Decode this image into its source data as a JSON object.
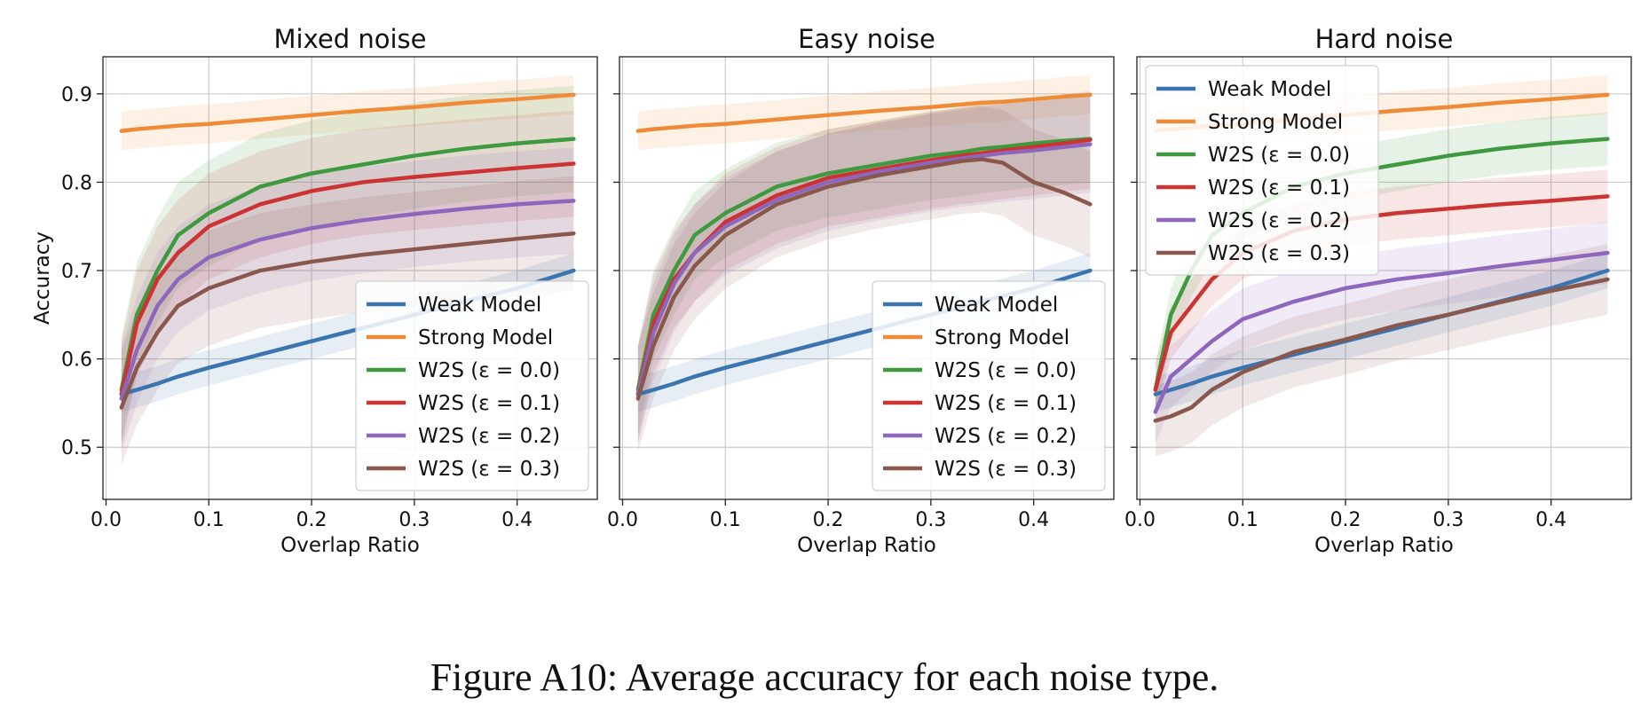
{
  "caption": "Figure A10:   Average accuracy for each noise type.",
  "colors": {
    "weak": "#3a75b0",
    "strong": "#ef8b36",
    "w2s0": "#3f9a3f",
    "w2s1": "#cc3333",
    "w2s2": "#8e67bd",
    "w2s3": "#8a574d"
  },
  "chart_data": [
    {
      "type": "line",
      "title": "Mixed noise",
      "xlabel": "Overlap Ratio",
      "ylabel": "Accuracy",
      "xlim": [
        -0.003,
        0.478
      ],
      "ylim": [
        0.441,
        0.942
      ],
      "xticks": [
        "0.0",
        "0.1",
        "0.2",
        "0.3",
        "0.4"
      ],
      "yticks": [
        "0.5",
        "0.6",
        "0.7",
        "0.8",
        "0.9"
      ],
      "grid": true,
      "legend_position": "lower right",
      "x": [
        0.015,
        0.03,
        0.05,
        0.07,
        0.1,
        0.15,
        0.2,
        0.25,
        0.3,
        0.35,
        0.4,
        0.455
      ],
      "series": [
        {
          "name": "Weak Model",
          "key": "weak",
          "values": [
            0.56,
            0.565,
            0.572,
            0.58,
            0.59,
            0.605,
            0.62,
            0.635,
            0.65,
            0.665,
            0.68,
            0.7
          ],
          "band": 0.02
        },
        {
          "name": "Strong Model",
          "key": "strong",
          "values": [
            0.858,
            0.86,
            0.862,
            0.864,
            0.866,
            0.871,
            0.876,
            0.881,
            0.885,
            0.89,
            0.894,
            0.899
          ],
          "band": 0.022
        },
        {
          "name": "W2S (ε = 0.0)",
          "key": "w2s0",
          "values": [
            0.565,
            0.65,
            0.7,
            0.74,
            0.765,
            0.795,
            0.81,
            0.82,
            0.83,
            0.838,
            0.844,
            0.849
          ],
          "band": 0.06
        },
        {
          "name": "W2S (ε = 0.1)",
          "key": "w2s1",
          "values": [
            0.56,
            0.64,
            0.69,
            0.72,
            0.75,
            0.775,
            0.79,
            0.8,
            0.806,
            0.811,
            0.816,
            0.821
          ],
          "band": 0.06
        },
        {
          "name": "W2S (ε = 0.2)",
          "key": "w2s2",
          "values": [
            0.555,
            0.61,
            0.66,
            0.69,
            0.715,
            0.735,
            0.748,
            0.757,
            0.764,
            0.77,
            0.775,
            0.779
          ],
          "band": 0.06
        },
        {
          "name": "W2S (ε = 0.3)",
          "key": "w2s3",
          "values": [
            0.545,
            0.59,
            0.63,
            0.66,
            0.68,
            0.7,
            0.71,
            0.718,
            0.724,
            0.73,
            0.736,
            0.742
          ],
          "band": 0.065
        }
      ]
    },
    {
      "type": "line",
      "title": "Easy noise",
      "xlabel": "Overlap Ratio",
      "ylabel": "",
      "xlim": [
        -0.003,
        0.478
      ],
      "ylim": [
        0.441,
        0.942
      ],
      "xticks": [
        "0.0",
        "0.1",
        "0.2",
        "0.3",
        "0.4"
      ],
      "yticks": [],
      "grid": true,
      "legend_position": "lower right",
      "x": [
        0.015,
        0.03,
        0.05,
        0.07,
        0.1,
        0.15,
        0.2,
        0.25,
        0.3,
        0.33,
        0.35,
        0.37,
        0.4,
        0.43,
        0.455
      ],
      "series": [
        {
          "name": "Weak Model",
          "key": "weak",
          "values": [
            0.56,
            0.565,
            0.572,
            0.58,
            0.59,
            0.605,
            0.62,
            0.635,
            0.65,
            0.659,
            0.665,
            0.671,
            0.68,
            0.691,
            0.7
          ],
          "band": 0.02
        },
        {
          "name": "Strong Model",
          "key": "strong",
          "values": [
            0.858,
            0.86,
            0.862,
            0.864,
            0.866,
            0.871,
            0.876,
            0.881,
            0.885,
            0.888,
            0.89,
            0.891,
            0.894,
            0.897,
            0.899
          ],
          "band": 0.022
        },
        {
          "name": "W2S (ε = 0.0)",
          "key": "w2s0",
          "values": [
            0.565,
            0.65,
            0.7,
            0.74,
            0.765,
            0.795,
            0.81,
            0.82,
            0.83,
            0.834,
            0.838,
            0.84,
            0.844,
            0.847,
            0.849
          ],
          "band": 0.05
        },
        {
          "name": "W2S (ε = 0.1)",
          "key": "w2s1",
          "values": [
            0.56,
            0.64,
            0.69,
            0.72,
            0.755,
            0.785,
            0.805,
            0.815,
            0.825,
            0.83,
            0.833,
            0.836,
            0.84,
            0.844,
            0.848
          ],
          "band": 0.055
        },
        {
          "name": "W2S (ε = 0.2)",
          "key": "w2s2",
          "values": [
            0.56,
            0.63,
            0.685,
            0.72,
            0.75,
            0.78,
            0.8,
            0.812,
            0.822,
            0.827,
            0.83,
            0.833,
            0.836,
            0.84,
            0.843
          ],
          "band": 0.055
        },
        {
          "name": "W2S (ε = 0.3)",
          "key": "w2s3",
          "values": [
            0.555,
            0.615,
            0.67,
            0.705,
            0.74,
            0.775,
            0.795,
            0.808,
            0.818,
            0.824,
            0.826,
            0.822,
            0.8,
            0.788,
            0.775
          ],
          "band": 0.06
        }
      ]
    },
    {
      "type": "line",
      "title": "Hard noise",
      "xlabel": "Overlap Ratio",
      "ylabel": "",
      "xlim": [
        -0.003,
        0.478
      ],
      "ylim": [
        0.441,
        0.942
      ],
      "xticks": [
        "0.0",
        "0.1",
        "0.2",
        "0.3",
        "0.4"
      ],
      "yticks": [],
      "grid": true,
      "legend_position": "upper left",
      "x": [
        0.015,
        0.03,
        0.05,
        0.07,
        0.1,
        0.15,
        0.2,
        0.25,
        0.3,
        0.35,
        0.4,
        0.455
      ],
      "series": [
        {
          "name": "Weak Model",
          "key": "weak",
          "values": [
            0.56,
            0.565,
            0.572,
            0.58,
            0.59,
            0.605,
            0.62,
            0.635,
            0.65,
            0.665,
            0.68,
            0.7
          ],
          "band": 0.02
        },
        {
          "name": "Strong Model",
          "key": "strong",
          "values": [
            0.858,
            0.86,
            0.862,
            0.864,
            0.866,
            0.871,
            0.876,
            0.881,
            0.885,
            0.89,
            0.894,
            0.899
          ],
          "band": 0.022
        },
        {
          "name": "W2S (ε = 0.0)",
          "key": "w2s0",
          "values": [
            0.565,
            0.65,
            0.7,
            0.74,
            0.765,
            0.795,
            0.81,
            0.82,
            0.83,
            0.838,
            0.844,
            0.849
          ],
          "band": 0.03
        },
        {
          "name": "W2S (ε = 0.1)",
          "key": "w2s1",
          "values": [
            0.565,
            0.63,
            0.66,
            0.69,
            0.72,
            0.745,
            0.758,
            0.765,
            0.77,
            0.775,
            0.779,
            0.784
          ],
          "band": 0.03
        },
        {
          "name": "W2S (ε = 0.2)",
          "key": "w2s2",
          "values": [
            0.54,
            0.58,
            0.6,
            0.62,
            0.645,
            0.665,
            0.68,
            0.69,
            0.697,
            0.705,
            0.712,
            0.72
          ],
          "band": 0.035
        },
        {
          "name": "W2S (ε = 0.3)",
          "key": "w2s3",
          "values": [
            0.53,
            0.535,
            0.545,
            0.565,
            0.585,
            0.608,
            0.622,
            0.638,
            0.65,
            0.664,
            0.677,
            0.69
          ],
          "band": 0.04
        }
      ]
    }
  ]
}
